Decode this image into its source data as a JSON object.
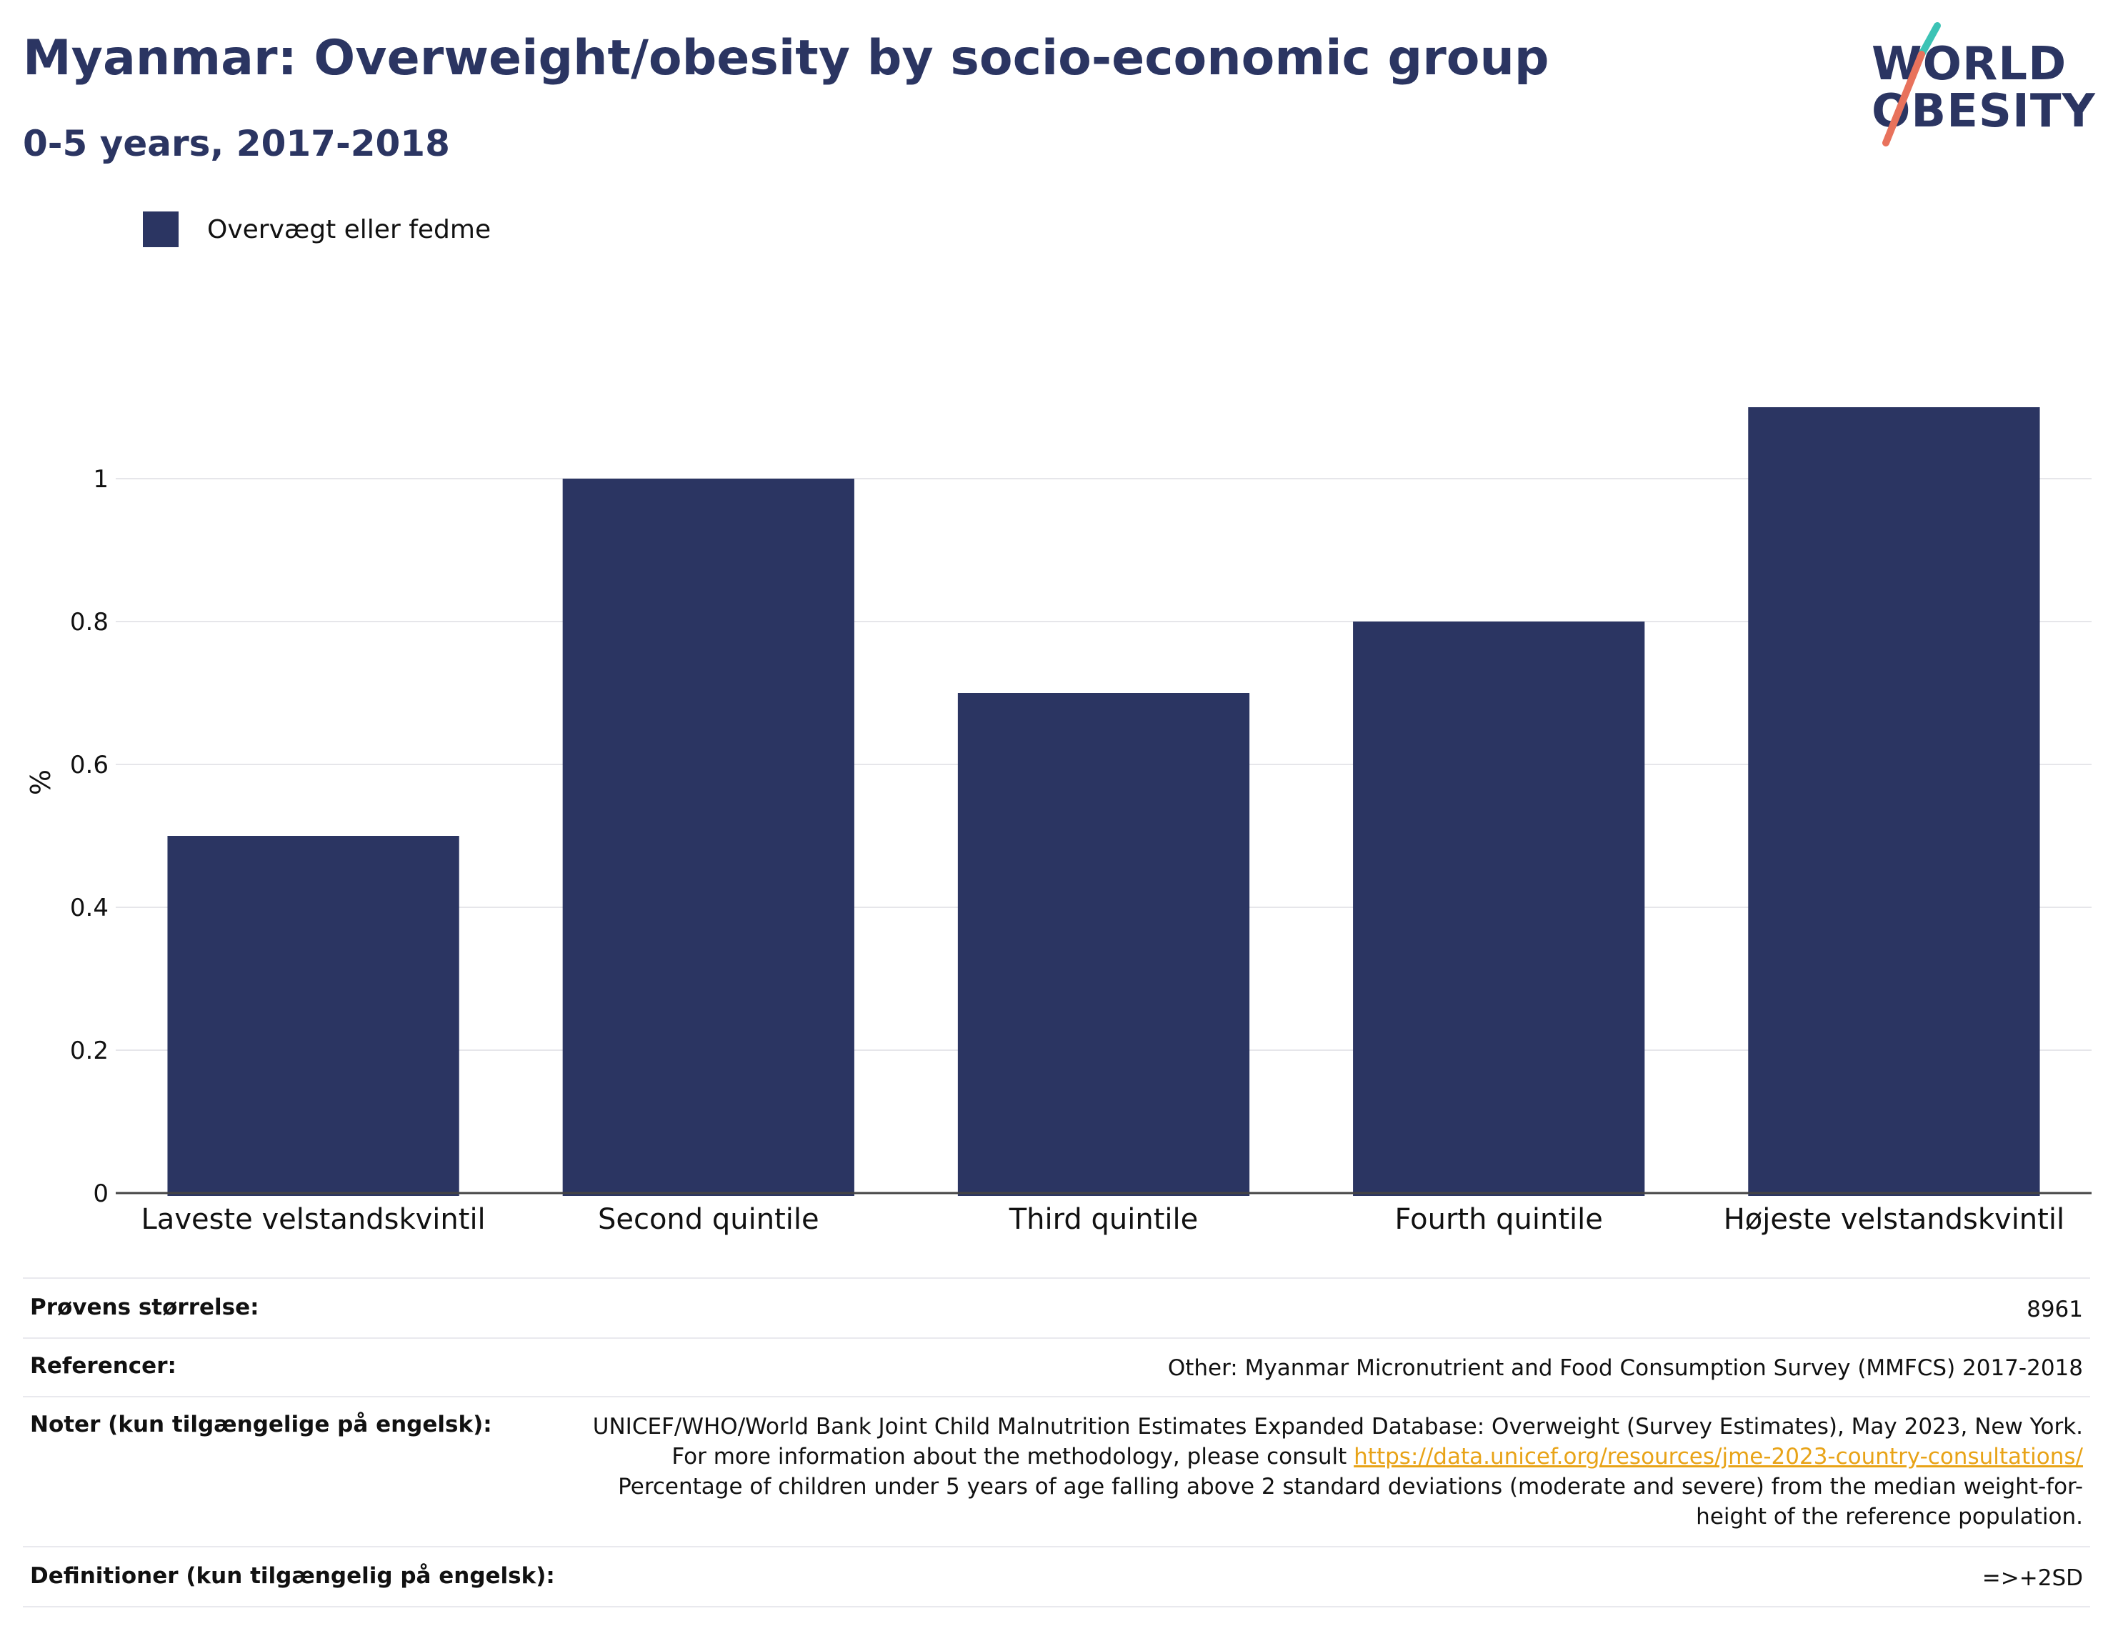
{
  "header": {
    "title": "Myanmar: Overweight/obesity by socio-economic group",
    "subtitle": "0-5 years, 2017-2018"
  },
  "logo": {
    "line1": "WORLD",
    "line2": "OBESITY",
    "accent_colors": [
      "#3cc3b5",
      "#e8725c"
    ]
  },
  "colors": {
    "bar": "#2b3562",
    "title": "#2b3562",
    "link": "#e8a317",
    "grid": "#e6e6ea"
  },
  "chart_data": {
    "type": "bar",
    "title": "Myanmar: Overweight/obesity by socio-economic group",
    "subtitle": "0-5 years, 2017-2018",
    "categories": [
      "Laveste velstandskvintil",
      "Second quintile",
      "Third quintile",
      "Fourth quintile",
      "Højeste velstandskvintil"
    ],
    "series": [
      {
        "name": "Overvægt eller fedme",
        "values": [
          0.5,
          1.0,
          0.7,
          0.8,
          1.1
        ]
      }
    ],
    "xlabel": "",
    "ylabel": "%",
    "ylim": [
      0,
      1.15
    ],
    "yticks": [
      0,
      0.2,
      0.4,
      0.6,
      0.8,
      1
    ],
    "ytick_labels": [
      "0",
      "0.2",
      "0.4",
      "0.6",
      "0.8",
      "1"
    ],
    "grid": true,
    "legend": "top-left"
  },
  "info_table": {
    "rows": [
      {
        "label": "Prøvens størrelse:",
        "value": "8961"
      },
      {
        "label": "Referencer:",
        "value": "Other: Myanmar Micronutrient and Food Consumption Survey (MMFCS) 2017-2018"
      },
      {
        "label": "Noter (kun tilgængelige på engelsk):",
        "value_before": "UNICEF/WHO/World Bank Joint Child Malnutrition Estimates Expanded Database: Overweight (Survey Estimates), May 2023, New York. For more information about the methodology, please consult ",
        "link": "https://data.unicef.org/resources/jme-2023-country-consultations/",
        "value_after": " Percentage of children under 5 years of age falling above 2 standard deviations (moderate and severe) from the median weight-for-height of the reference population."
      },
      {
        "label": "Definitioner (kun tilgængelig på engelsk):",
        "value": "=>+2SD"
      }
    ]
  }
}
